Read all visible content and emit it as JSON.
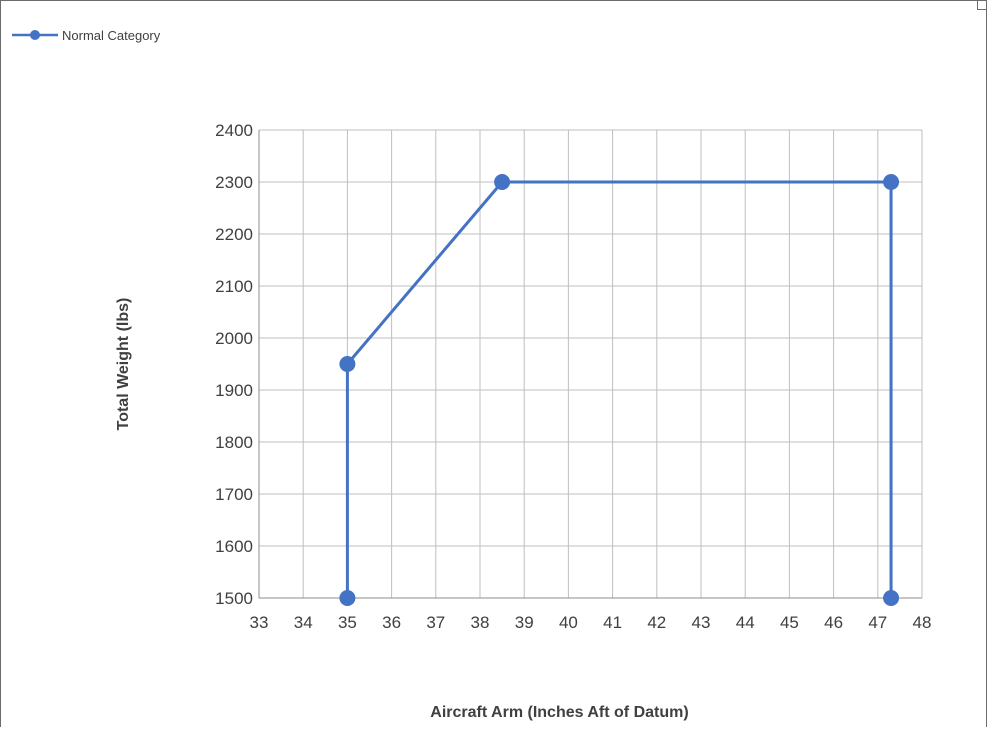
{
  "chart_data": {
    "type": "scatter",
    "title": "",
    "xlabel": "Aircraft Arm (Inches Aft of Datum)",
    "ylabel": "Total Weight (lbs)",
    "xlim": [
      33,
      48
    ],
    "ylim": [
      1500,
      2400
    ],
    "x_ticks": [
      33,
      34,
      35,
      36,
      37,
      38,
      39,
      40,
      41,
      42,
      43,
      44,
      45,
      46,
      47,
      48
    ],
    "y_ticks": [
      1500,
      1600,
      1700,
      1800,
      1900,
      2000,
      2100,
      2200,
      2300,
      2400
    ],
    "grid": true,
    "legend": "top-left",
    "series": [
      {
        "name": "Normal Category",
        "color": "#4472c4",
        "lines": true,
        "markers": true,
        "points": [
          {
            "x": 35.0,
            "y": 1500
          },
          {
            "x": 35.0,
            "y": 1950
          },
          {
            "x": 38.5,
            "y": 2300
          },
          {
            "x": 47.3,
            "y": 2300
          },
          {
            "x": 47.3,
            "y": 1500
          }
        ]
      }
    ]
  }
}
